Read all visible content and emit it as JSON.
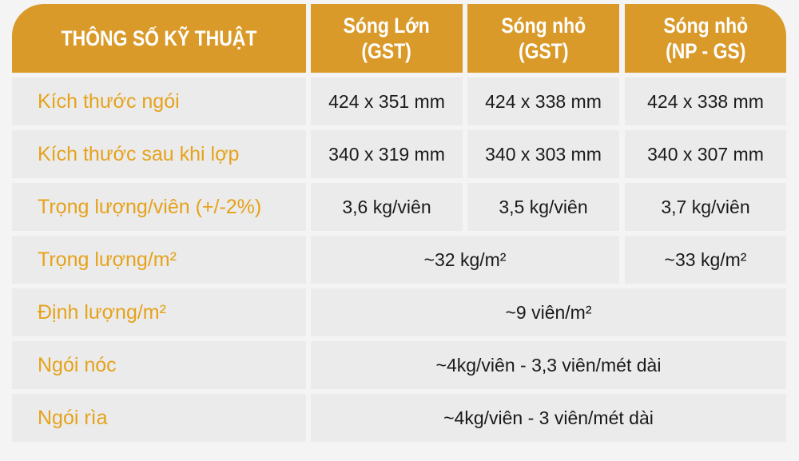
{
  "colors": {
    "header_bg": "#da9a2a",
    "label_text": "#e6a21a",
    "cell_bg": "#ebebeb"
  },
  "header": [
    "THÔNG SỐ KỸ THUẬT",
    "Sóng Lớn (GST)",
    "Sóng nhỏ (GST)",
    "Sóng nhỏ (NP - GS)"
  ],
  "header_lines": [
    [
      "THÔNG SỐ KỸ THUẬT"
    ],
    [
      "Sóng Lớn",
      "(GST)"
    ],
    [
      "Sóng nhỏ",
      "(GST)"
    ],
    [
      "Sóng nhỏ",
      "(NP - GS)"
    ]
  ],
  "rows": [
    {
      "label": "Kích thước ngói",
      "values": [
        "424 x 351 mm",
        "424 x 338 mm",
        "424 x 338 mm"
      ]
    },
    {
      "label": "Kích thước sau khi lợp",
      "values": [
        "340 x 319 mm",
        "340 x 303 mm",
        "340 x 307 mm"
      ]
    },
    {
      "label": "Trọng lượng/viên (+/-2%)",
      "values": [
        "3,6 kg/viên",
        "3,5 kg/viên",
        "3,7 kg/viên"
      ]
    },
    {
      "label": "Trọng lượng/m²",
      "values": [
        "~32 kg/m²",
        "~33 kg/m²"
      ]
    },
    {
      "label": "Định lượng/m²",
      "values": [
        "~9 viên/m²"
      ]
    },
    {
      "label": "Ngói nóc",
      "values": [
        "~4kg/viên - 3,3 viên/mét dài"
      ]
    },
    {
      "label": "Ngói rìa",
      "values": [
        "~4kg/viên - 3 viên/mét dài"
      ]
    }
  ]
}
